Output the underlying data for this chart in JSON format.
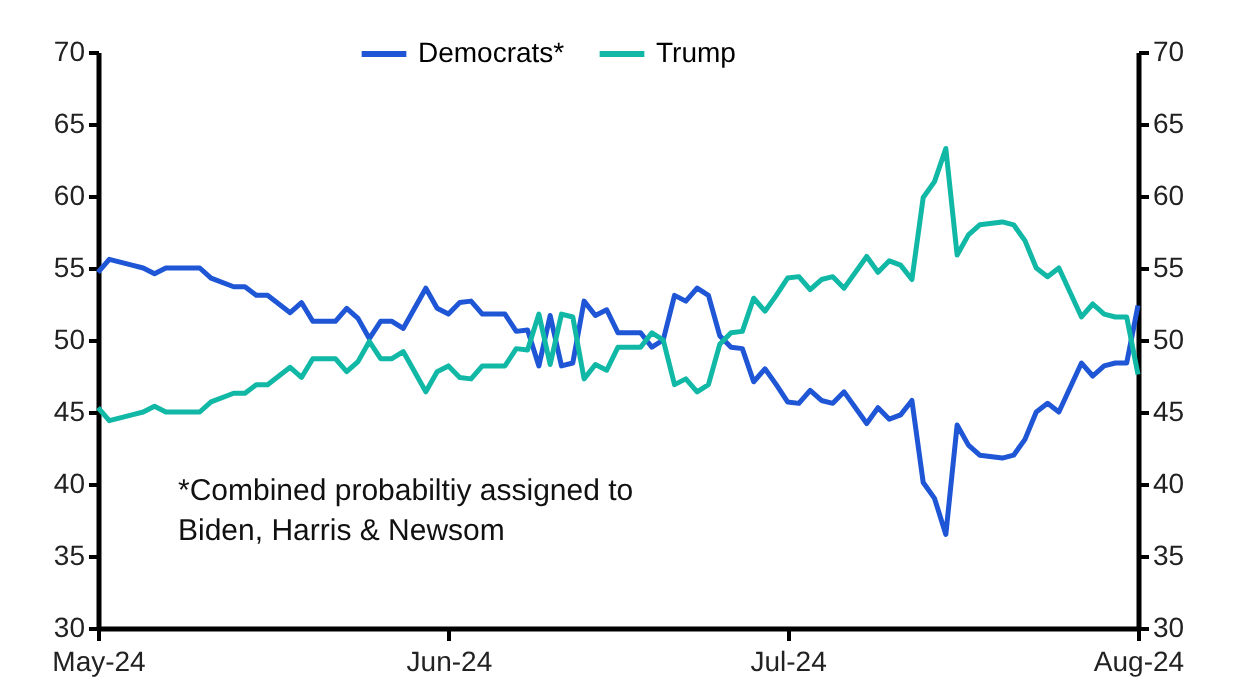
{
  "chart_data": {
    "type": "line",
    "x": [
      "2024-05-01",
      "2024-05-02",
      "2024-05-04",
      "2024-05-05",
      "2024-05-06",
      "2024-05-07",
      "2024-05-10",
      "2024-05-11",
      "2024-05-13",
      "2024-05-14",
      "2024-05-15",
      "2024-05-16",
      "2024-05-18",
      "2024-05-19",
      "2024-05-20",
      "2024-05-22",
      "2024-05-23",
      "2024-05-24",
      "2024-05-25",
      "2024-05-26",
      "2024-05-27",
      "2024-05-28",
      "2024-05-30",
      "2024-05-31",
      "2024-06-01",
      "2024-06-02",
      "2024-06-03",
      "2024-06-04",
      "2024-06-06",
      "2024-06-07",
      "2024-06-08",
      "2024-06-09",
      "2024-06-10",
      "2024-06-11",
      "2024-06-12",
      "2024-06-13",
      "2024-06-14",
      "2024-06-15",
      "2024-06-16",
      "2024-06-18",
      "2024-06-19",
      "2024-06-20",
      "2024-06-21",
      "2024-06-22",
      "2024-06-23",
      "2024-06-24",
      "2024-06-25",
      "2024-06-26",
      "2024-06-27",
      "2024-06-28",
      "2024-06-29",
      "2024-06-30",
      "2024-07-01",
      "2024-07-02",
      "2024-07-03",
      "2024-07-04",
      "2024-07-05",
      "2024-07-06",
      "2024-07-08",
      "2024-07-09",
      "2024-07-10",
      "2024-07-11",
      "2024-07-12",
      "2024-07-13",
      "2024-07-14",
      "2024-07-15",
      "2024-07-16",
      "2024-07-17",
      "2024-07-18",
      "2024-07-20",
      "2024-07-21",
      "2024-07-22",
      "2024-07-23",
      "2024-07-24",
      "2024-07-25",
      "2024-07-27",
      "2024-07-28",
      "2024-07-29",
      "2024-07-30",
      "2024-07-31",
      "2024-08-01"
    ],
    "series": [
      {
        "name": "Democrats*",
        "color": "#1f56d6",
        "values": [
          54.7,
          55.6,
          55.2,
          55.0,
          54.6,
          55.0,
          55.0,
          54.3,
          53.7,
          53.7,
          53.1,
          53.1,
          51.9,
          52.6,
          51.3,
          51.3,
          52.2,
          51.5,
          50.1,
          51.3,
          51.3,
          50.8,
          53.6,
          52.2,
          51.8,
          52.6,
          52.7,
          51.8,
          51.8,
          50.6,
          50.7,
          48.2,
          51.7,
          48.2,
          48.4,
          52.7,
          51.7,
          52.1,
          50.5,
          50.5,
          49.5,
          50.0,
          53.1,
          52.7,
          53.6,
          53.1,
          50.3,
          49.5,
          49.4,
          47.1,
          48.0,
          46.9,
          45.7,
          45.6,
          46.5,
          45.8,
          45.6,
          46.4,
          44.2,
          45.3,
          44.5,
          44.8,
          45.8,
          40.1,
          39.0,
          36.5,
          44.1,
          42.7,
          42.0,
          41.8,
          42.0,
          43.1,
          45.0,
          45.6,
          45.0,
          48.4,
          47.5,
          48.2,
          48.4,
          48.4,
          52.4
        ]
      },
      {
        "name": "Trump",
        "color": "#12b8a6",
        "values": [
          45.3,
          44.4,
          44.8,
          45.0,
          45.4,
          45.0,
          45.0,
          45.7,
          46.3,
          46.3,
          46.9,
          46.9,
          48.1,
          47.4,
          48.7,
          48.7,
          47.8,
          48.5,
          49.9,
          48.7,
          48.7,
          49.2,
          46.4,
          47.8,
          48.2,
          47.4,
          47.3,
          48.2,
          48.2,
          49.4,
          49.3,
          51.8,
          48.3,
          51.8,
          51.6,
          47.3,
          48.3,
          47.9,
          49.5,
          49.5,
          50.5,
          50.0,
          46.9,
          47.3,
          46.4,
          46.9,
          49.7,
          50.5,
          50.6,
          52.9,
          52.0,
          53.1,
          54.3,
          54.4,
          53.5,
          54.2,
          54.4,
          53.6,
          55.8,
          54.7,
          55.5,
          55.2,
          54.2,
          59.9,
          61.0,
          63.3,
          55.9,
          57.3,
          58.0,
          58.2,
          58.0,
          56.9,
          55.0,
          54.4,
          55.0,
          51.6,
          52.5,
          51.8,
          51.6,
          51.6,
          47.6
        ]
      }
    ],
    "xlim": [
      "2024-05-01",
      "2024-08-01"
    ],
    "xticks": [
      {
        "value": "2024-05-01",
        "label": "May-24"
      },
      {
        "value": "2024-06-01",
        "label": "Jun-24"
      },
      {
        "value": "2024-07-01",
        "label": "Jul-24"
      },
      {
        "value": "2024-08-01",
        "label": "Aug-24"
      }
    ],
    "ylim": [
      30,
      70
    ],
    "yticks": [
      30,
      35,
      40,
      45,
      50,
      55,
      60,
      65,
      70
    ],
    "y2lim": [
      30,
      70
    ],
    "y2ticks": [
      30,
      35,
      40,
      45,
      50,
      55,
      60,
      65,
      70
    ],
    "annotations": [
      "*Combined probabiltiy assigned to\nBiden, Harris & Newsom"
    ],
    "legend": "top",
    "grid": false,
    "line_style": "solid",
    "marker": "none"
  }
}
